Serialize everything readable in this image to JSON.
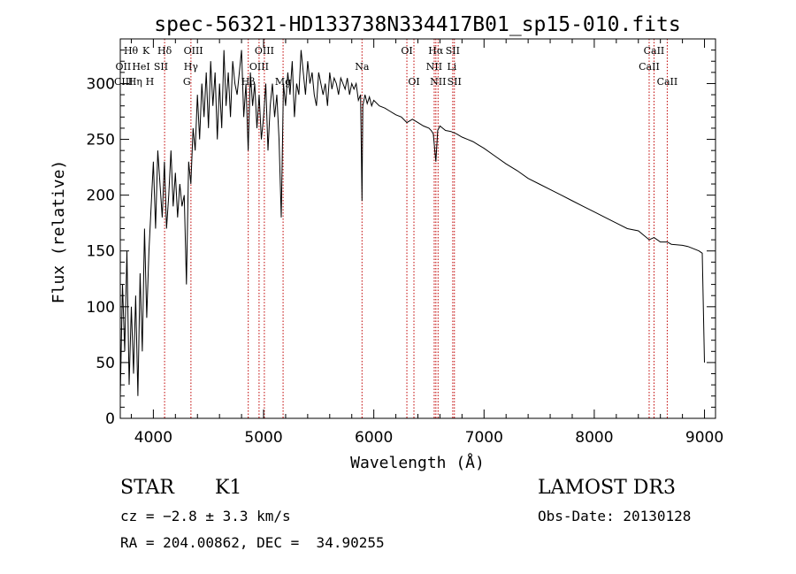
{
  "chart_data": {
    "type": "line",
    "title": "spec-56321-HD133738N334417B01_sp15-010.fits",
    "xlabel": "Wavelength (Å)",
    "ylabel": "Flux (relative)",
    "xlim": [
      3700,
      9100
    ],
    "ylim": [
      0,
      340
    ],
    "xticks": [
      4000,
      5000,
      6000,
      7000,
      8000,
      9000
    ],
    "yticks": [
      0,
      50,
      100,
      150,
      200,
      250,
      300
    ],
    "grid": false,
    "series": [
      {
        "name": "flux",
        "x": [
          3700,
          3720,
          3740,
          3760,
          3780,
          3800,
          3820,
          3840,
          3860,
          3880,
          3900,
          3920,
          3940,
          3960,
          3980,
          4000,
          4020,
          4040,
          4060,
          4080,
          4100,
          4120,
          4140,
          4160,
          4180,
          4200,
          4220,
          4240,
          4260,
          4280,
          4300,
          4320,
          4340,
          4360,
          4380,
          4400,
          4420,
          4440,
          4460,
          4480,
          4500,
          4520,
          4540,
          4560,
          4580,
          4600,
          4620,
          4640,
          4660,
          4680,
          4700,
          4720,
          4740,
          4760,
          4780,
          4800,
          4820,
          4840,
          4860,
          4880,
          4900,
          4920,
          4940,
          4960,
          4980,
          5000,
          5020,
          5040,
          5060,
          5080,
          5100,
          5120,
          5140,
          5160,
          5180,
          5200,
          5220,
          5240,
          5260,
          5280,
          5300,
          5320,
          5340,
          5360,
          5380,
          5400,
          5420,
          5440,
          5460,
          5480,
          5500,
          5520,
          5540,
          5560,
          5580,
          5600,
          5620,
          5640,
          5660,
          5680,
          5700,
          5720,
          5740,
          5760,
          5780,
          5800,
          5820,
          5840,
          5860,
          5880,
          5893,
          5900,
          5920,
          5940,
          5960,
          5980,
          6000,
          6050,
          6100,
          6150,
          6200,
          6250,
          6300,
          6350,
          6400,
          6450,
          6500,
          6520,
          6540,
          6563,
          6580,
          6600,
          6650,
          6700,
          6750,
          6800,
          6850,
          6900,
          6950,
          7000,
          7100,
          7200,
          7300,
          7400,
          7500,
          7600,
          7700,
          7800,
          7900,
          8000,
          8100,
          8200,
          8300,
          8400,
          8498,
          8542,
          8600,
          8662,
          8700,
          8800,
          8850,
          8900,
          8950,
          8980,
          9000
        ],
        "values": [
          20,
          120,
          60,
          150,
          30,
          100,
          40,
          110,
          20,
          130,
          60,
          170,
          90,
          150,
          190,
          230,
          170,
          240,
          210,
          180,
          230,
          170,
          200,
          240,
          190,
          220,
          180,
          210,
          190,
          200,
          120,
          230,
          210,
          260,
          240,
          290,
          250,
          300,
          270,
          310,
          260,
          320,
          280,
          310,
          250,
          300,
          260,
          330,
          280,
          310,
          270,
          320,
          300,
          290,
          310,
          330,
          270,
          300,
          240,
          310,
          280,
          300,
          260,
          290,
          250,
          270,
          300,
          240,
          280,
          300,
          270,
          290,
          250,
          180,
          300,
          280,
          310,
          290,
          320,
          270,
          300,
          290,
          330,
          310,
          290,
          320,
          300,
          310,
          290,
          280,
          310,
          300,
          290,
          300,
          280,
          310,
          295,
          305,
          300,
          290,
          305,
          300,
          295,
          305,
          290,
          300,
          295,
          300,
          285,
          290,
          195,
          280,
          290,
          282,
          288,
          280,
          285,
          280,
          278,
          275,
          272,
          270,
          265,
          268,
          265,
          262,
          260,
          258,
          255,
          230,
          258,
          262,
          258,
          257,
          255,
          252,
          250,
          248,
          245,
          242,
          235,
          228,
          222,
          215,
          210,
          205,
          200,
          195,
          190,
          185,
          180,
          175,
          170,
          168,
          160,
          162,
          158,
          158,
          156,
          155,
          154,
          152,
          150,
          148,
          50
        ]
      }
    ],
    "lines": [
      {
        "name": "Hδ",
        "x": 4102
      },
      {
        "name": "Hγ",
        "x": 4341
      },
      {
        "name": "Hβ",
        "x": 4861
      },
      {
        "name": "OIII",
        "x": 4959
      },
      {
        "name": "OIII",
        "x": 5007
      },
      {
        "name": "Mg",
        "x": 5177
      },
      {
        "name": "Na",
        "x": 5893
      },
      {
        "name": "OI",
        "x": 6300
      },
      {
        "name": "OI",
        "x": 6364
      },
      {
        "name": "NII",
        "x": 6548
      },
      {
        "name": "Hα",
        "x": 6563
      },
      {
        "name": "NII",
        "x": 6583
      },
      {
        "name": "SII",
        "x": 6716
      },
      {
        "name": "SII",
        "x": 6731
      },
      {
        "name": "CaII",
        "x": 8498
      },
      {
        "name": "CaII",
        "x": 8542
      },
      {
        "name": "CaII",
        "x": 8662
      }
    ],
    "line_labels": [
      {
        "text": "Hθ",
        "x": 3797,
        "row": 0
      },
      {
        "text": "K",
        "x": 3934,
        "row": 0
      },
      {
        "text": "Hδ",
        "x": 4102,
        "row": 0
      },
      {
        "text": "OII",
        "x": 3727,
        "row": 1
      },
      {
        "text": "HeI",
        "x": 3889,
        "row": 1
      },
      {
        "text": "SII",
        "x": 4069,
        "row": 1
      },
      {
        "text": "CIII",
        "x": 3730,
        "row": 2
      },
      {
        "text": "Hη",
        "x": 3835,
        "row": 2
      },
      {
        "text": "H",
        "x": 3968,
        "row": 2
      },
      {
        "text": "OIII",
        "x": 4363,
        "row": 0
      },
      {
        "text": "Hγ",
        "x": 4341,
        "row": 1
      },
      {
        "text": "G",
        "x": 4304,
        "row": 2
      },
      {
        "text": "OIII",
        "x": 5007,
        "row": 0
      },
      {
        "text": "OIII",
        "x": 4959,
        "row": 1
      },
      {
        "text": "Hβ",
        "x": 4861,
        "row": 2
      },
      {
        "text": "Mg",
        "x": 5177,
        "row": 2
      },
      {
        "text": "Na",
        "x": 5893,
        "row": 1
      },
      {
        "text": "OI",
        "x": 6300,
        "row": 0
      },
      {
        "text": "OI",
        "x": 6364,
        "row": 2
      },
      {
        "text": "Hα",
        "x": 6563,
        "row": 0
      },
      {
        "text": "SII",
        "x": 6716,
        "row": 0
      },
      {
        "text": "NII",
        "x": 6548,
        "row": 1
      },
      {
        "text": "Li",
        "x": 6708,
        "row": 1
      },
      {
        "text": "NII",
        "x": 6583,
        "row": 2
      },
      {
        "text": "SII",
        "x": 6731,
        "row": 2
      },
      {
        "text": "CaII",
        "x": 8542,
        "row": 0
      },
      {
        "text": "CaII",
        "x": 8498,
        "row": 1
      },
      {
        "text": "CaII",
        "x": 8662,
        "row": 2
      }
    ]
  },
  "info": {
    "class_label": "STAR",
    "subclass": "K1",
    "survey": "LAMOST DR3",
    "cz": "cz = −2.8 ± 3.3 km/s",
    "obs_date": "Obs-Date: 20130128",
    "radec": "RA = 204.00862, DEC =  34.90255"
  },
  "colors": {
    "axis": "#000000",
    "spectrum": "#000000",
    "line_marker": "#c00000"
  }
}
